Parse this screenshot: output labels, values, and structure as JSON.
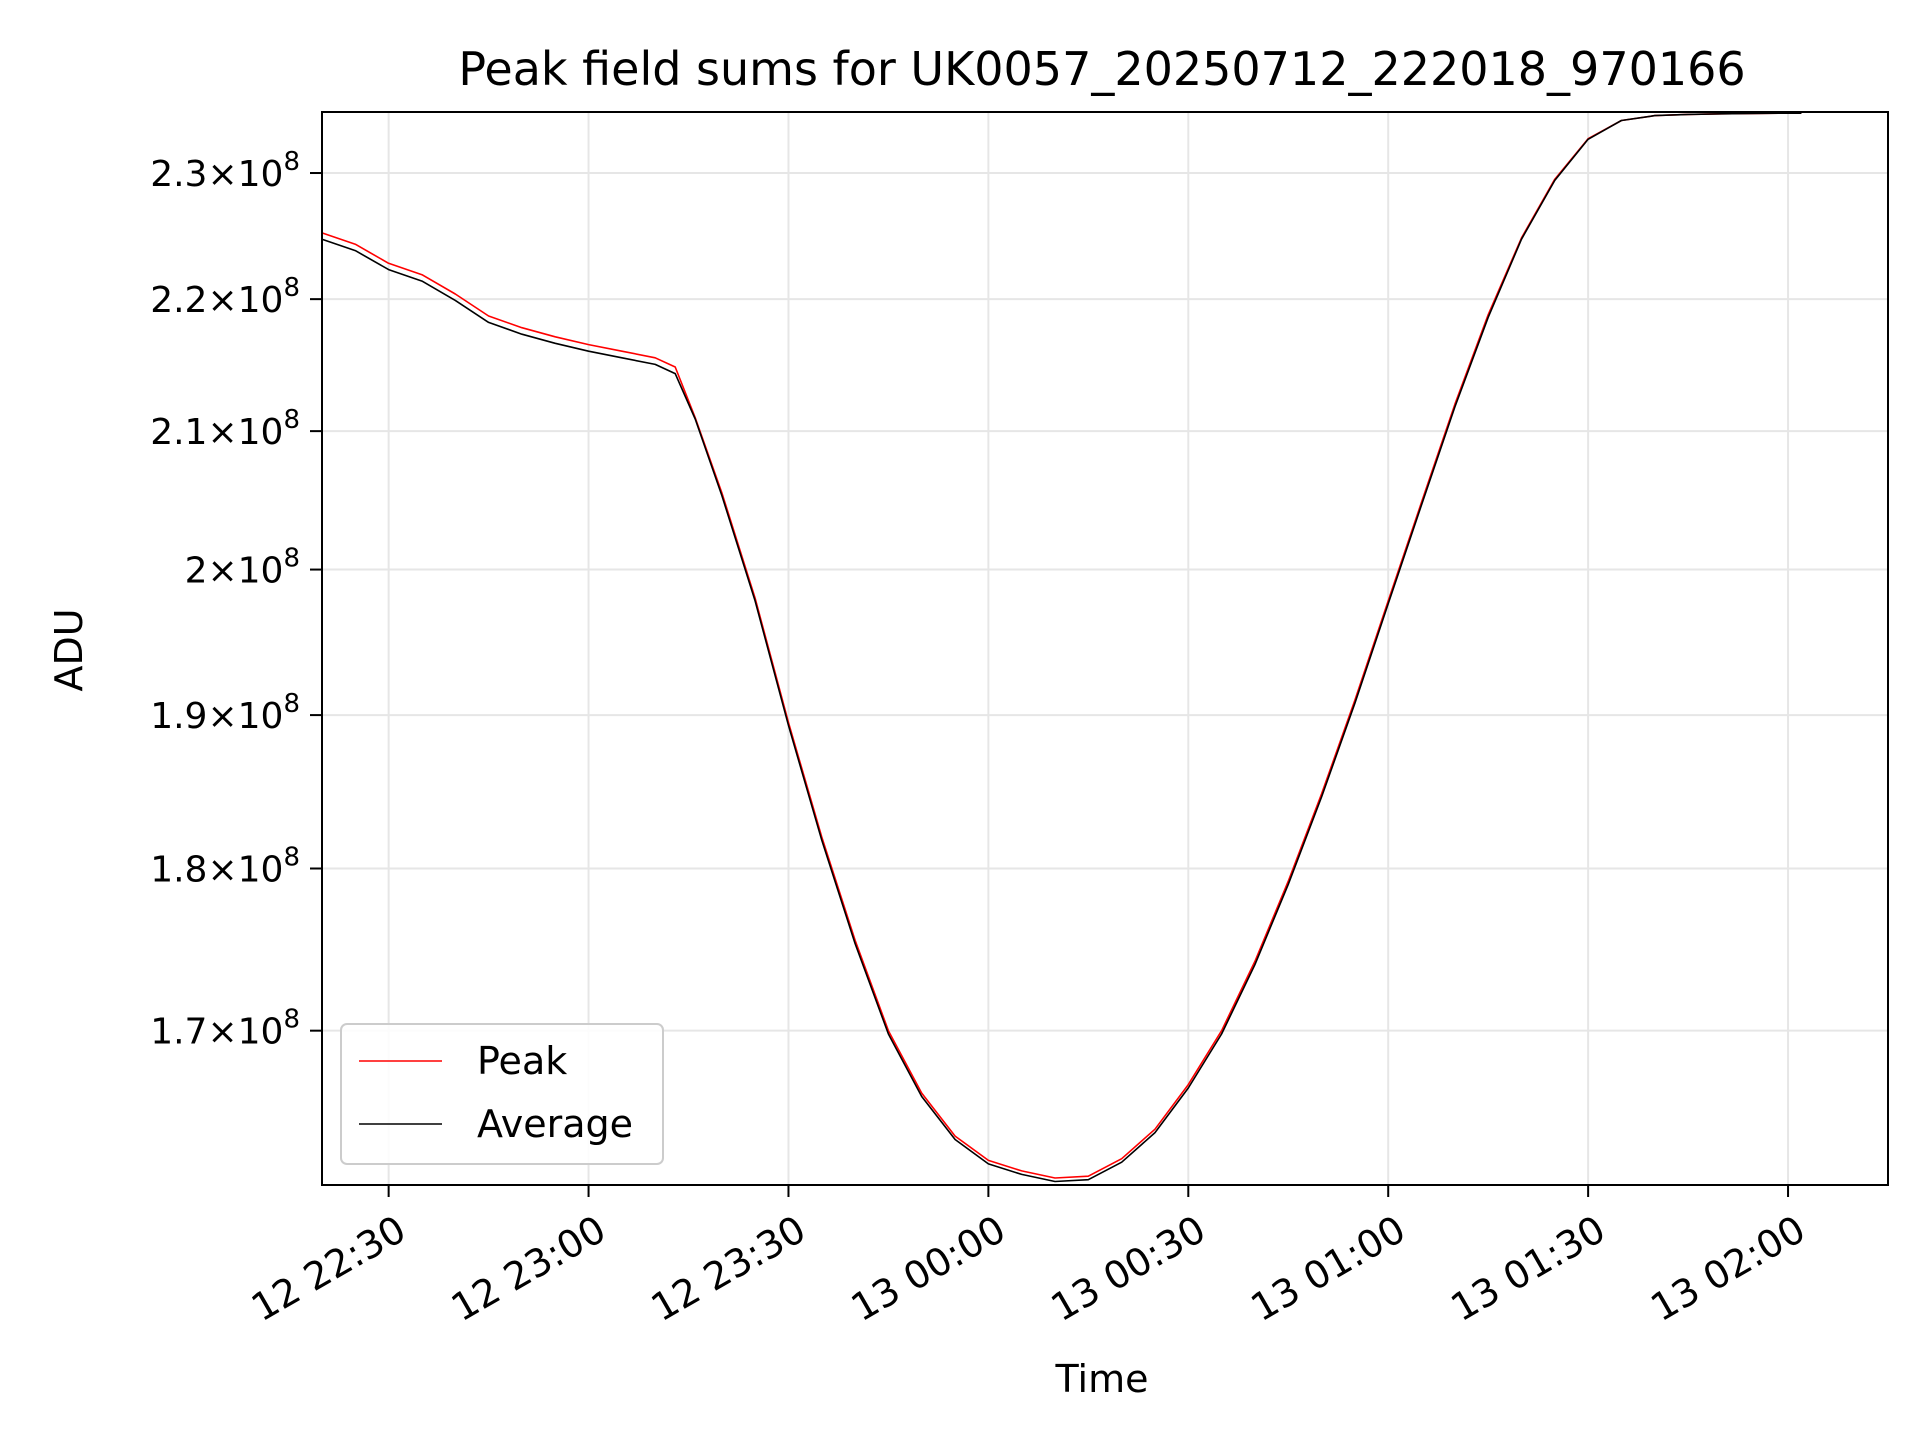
{
  "chart_data": {
    "type": "line",
    "title": "Peak field sums for UK0057_20250712_222018_970166",
    "xlabel": "Time",
    "ylabel": "ADU",
    "y_scale": "log",
    "grid": true,
    "legend_position": "lower-left",
    "xlim": [
      "2025-07-12 22:20",
      "2025-07-13 02:15"
    ],
    "ylim": [
      161000000,
      235000000
    ],
    "x_ticks": [
      {
        "value": "2025-07-12 22:30",
        "label": "12 22:30"
      },
      {
        "value": "2025-07-12 23:00",
        "label": "12 23:00"
      },
      {
        "value": "2025-07-12 23:30",
        "label": "12 23:30"
      },
      {
        "value": "2025-07-13 00:00",
        "label": "13 00:00"
      },
      {
        "value": "2025-07-13 00:30",
        "label": "13 00:30"
      },
      {
        "value": "2025-07-13 01:00",
        "label": "13 01:00"
      },
      {
        "value": "2025-07-13 01:30",
        "label": "13 01:30"
      },
      {
        "value": "2025-07-13 02:00",
        "label": "13 02:00"
      }
    ],
    "y_ticks": [
      {
        "value": 170000000,
        "mantissa": "1.7",
        "exponent": "8"
      },
      {
        "value": 180000000,
        "mantissa": "1.8",
        "exponent": "8"
      },
      {
        "value": 190000000,
        "mantissa": "1.9",
        "exponent": "8"
      },
      {
        "value": 200000000,
        "mantissa": "2",
        "exponent": "8"
      },
      {
        "value": 210000000,
        "mantissa": "2.1",
        "exponent": "8"
      },
      {
        "value": 220000000,
        "mantissa": "2.2",
        "exponent": "8"
      },
      {
        "value": 230000000,
        "mantissa": "2.3",
        "exponent": "8"
      }
    ],
    "series": [
      {
        "name": "Peak",
        "color": "#ff0000",
        "x": [
          "2025-07-12 22:20",
          "2025-07-12 22:25",
          "2025-07-12 22:30",
          "2025-07-12 22:35",
          "2025-07-12 22:40",
          "2025-07-12 22:45",
          "2025-07-12 22:50",
          "2025-07-12 22:55",
          "2025-07-12 23:00",
          "2025-07-12 23:05",
          "2025-07-12 23:10",
          "2025-07-12 23:13",
          "2025-07-12 23:16",
          "2025-07-12 23:20",
          "2025-07-12 23:25",
          "2025-07-12 23:30",
          "2025-07-12 23:35",
          "2025-07-12 23:40",
          "2025-07-12 23:45",
          "2025-07-12 23:50",
          "2025-07-12 23:55",
          "2025-07-13 00:00",
          "2025-07-13 00:05",
          "2025-07-13 00:10",
          "2025-07-13 00:15",
          "2025-07-13 00:20",
          "2025-07-13 00:25",
          "2025-07-13 00:30",
          "2025-07-13 00:35",
          "2025-07-13 00:40",
          "2025-07-13 00:45",
          "2025-07-13 00:50",
          "2025-07-13 00:55",
          "2025-07-13 01:00",
          "2025-07-13 01:05",
          "2025-07-13 01:10",
          "2025-07-13 01:15",
          "2025-07-13 01:20",
          "2025-07-13 01:25",
          "2025-07-13 01:30",
          "2025-07-13 01:35",
          "2025-07-13 01:40",
          "2025-07-13 01:45",
          "2025-07-13 01:50",
          "2025-07-13 01:55",
          "2025-07-13 02:00",
          "2025-07-13 02:02"
        ],
        "y": [
          225200000,
          224300000,
          222800000,
          221900000,
          220400000,
          218700000,
          217800000,
          217100000,
          216500000,
          216000000,
          215500000,
          214800000,
          211000000,
          205500000,
          198000000,
          189500000,
          182000000,
          175500000,
          170000000,
          166300000,
          163800000,
          162400000,
          161800000,
          161400000,
          161500000,
          162500000,
          164200000,
          166800000,
          170000000,
          174200000,
          179200000,
          184800000,
          191000000,
          197800000,
          204800000,
          212000000,
          218800000,
          224800000,
          229500000,
          232800000,
          234300000,
          234700000,
          234800000,
          234850000,
          234880000,
          234900000,
          234900000
        ]
      },
      {
        "name": "Average",
        "color": "#000000",
        "x": [
          "2025-07-12 22:20",
          "2025-07-12 22:25",
          "2025-07-12 22:30",
          "2025-07-12 22:35",
          "2025-07-12 22:40",
          "2025-07-12 22:45",
          "2025-07-12 22:50",
          "2025-07-12 22:55",
          "2025-07-12 23:00",
          "2025-07-12 23:05",
          "2025-07-12 23:10",
          "2025-07-12 23:13",
          "2025-07-12 23:16",
          "2025-07-12 23:20",
          "2025-07-12 23:25",
          "2025-07-12 23:30",
          "2025-07-12 23:35",
          "2025-07-12 23:40",
          "2025-07-12 23:45",
          "2025-07-12 23:50",
          "2025-07-12 23:55",
          "2025-07-13 00:00",
          "2025-07-13 00:05",
          "2025-07-13 00:10",
          "2025-07-13 00:15",
          "2025-07-13 00:20",
          "2025-07-13 00:25",
          "2025-07-13 00:30",
          "2025-07-13 00:35",
          "2025-07-13 00:40",
          "2025-07-13 00:45",
          "2025-07-13 00:50",
          "2025-07-13 00:55",
          "2025-07-13 01:00",
          "2025-07-13 01:05",
          "2025-07-13 01:10",
          "2025-07-13 01:15",
          "2025-07-13 01:20",
          "2025-07-13 01:25",
          "2025-07-13 01:30",
          "2025-07-13 01:35",
          "2025-07-13 01:40",
          "2025-07-13 01:45",
          "2025-07-13 01:50",
          "2025-07-13 01:55",
          "2025-07-13 02:00",
          "2025-07-13 02:02"
        ],
        "y": [
          224700000,
          223800000,
          222300000,
          221400000,
          219900000,
          218200000,
          217300000,
          216600000,
          216000000,
          215500000,
          215000000,
          214300000,
          210900000,
          205300000,
          197800000,
          189300000,
          181800000,
          175300000,
          169800000,
          166100000,
          163600000,
          162200000,
          161600000,
          161200000,
          161300000,
          162300000,
          164000000,
          166600000,
          169800000,
          174000000,
          179000000,
          184600000,
          190800000,
          197600000,
          204600000,
          211800000,
          218600000,
          224700000,
          229400000,
          232750000,
          234300000,
          234700000,
          234800000,
          234850000,
          234880000,
          234900000,
          234900000
        ]
      }
    ]
  }
}
